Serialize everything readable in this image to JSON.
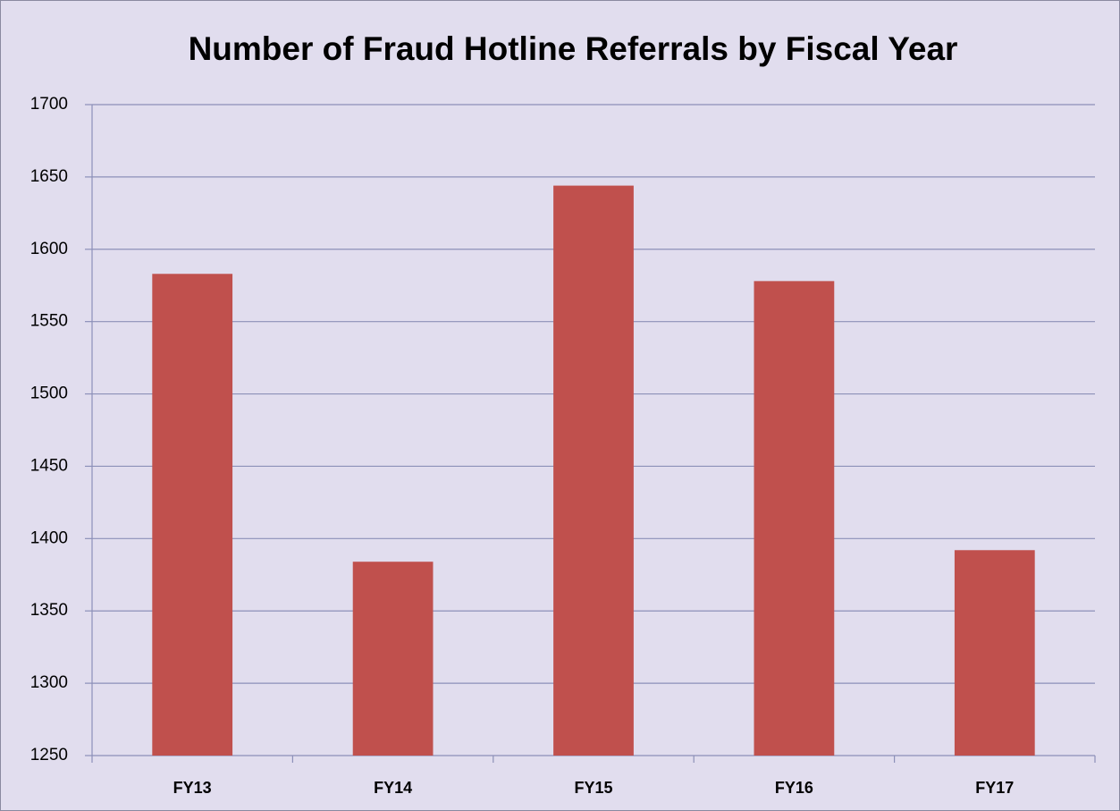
{
  "chart_data": {
    "type": "bar",
    "title": "Number of Fraud Hotline Referrals by Fiscal Year",
    "categories": [
      "FY13",
      "FY14",
      "FY15",
      "FY16",
      "FY17"
    ],
    "values": [
      1583,
      1384,
      1644,
      1578,
      1392
    ],
    "color": "#c0504d",
    "ylim": [
      1250,
      1700
    ],
    "yticks": [
      1250,
      1300,
      1350,
      1400,
      1450,
      1500,
      1550,
      1600,
      1650,
      1700
    ],
    "grid": true
  }
}
